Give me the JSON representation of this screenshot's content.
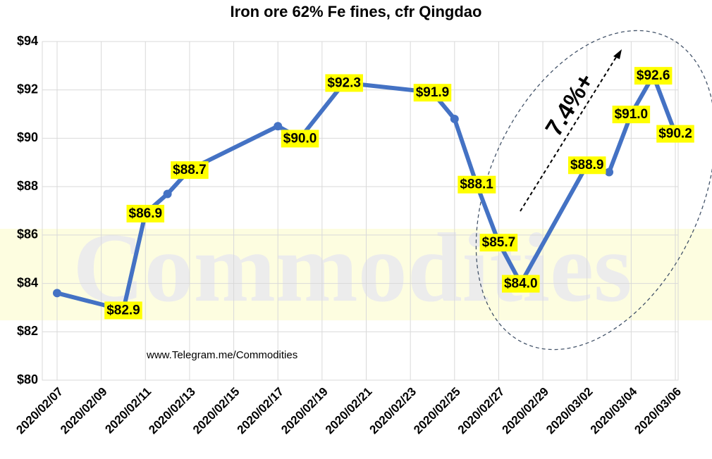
{
  "chart_data": {
    "type": "line",
    "title": "Iron ore 62% Fe fines, cfr Qingdao",
    "annotations": [
      "7.4%+",
      "www.Telegram.me/Commodities"
    ],
    "watermark": "Commodities",
    "x": [
      "2020/02/07",
      "2020/02/10",
      "2020/02/11",
      "2020/02/12",
      "2020/02/13",
      "2020/02/17",
      "2020/02/18",
      "2020/02/20",
      "2020/02/24",
      "2020/02/25",
      "2020/02/26",
      "2020/02/27",
      "2020/02/28",
      "2020/03/02",
      "2020/03/03",
      "2020/03/04",
      "2020/03/05",
      "2020/03/06"
    ],
    "series": [
      {
        "name": "Iron ore 62% Fe fines",
        "color": "#4472c4",
        "values": [
          83.6,
          82.9,
          86.9,
          87.7,
          88.7,
          90.5,
          90.0,
          92.3,
          91.9,
          90.8,
          88.1,
          85.7,
          84.0,
          88.9,
          88.6,
          91.0,
          92.6,
          90.2
        ],
        "value_labels": [
          null,
          "$82.9",
          "$86.9",
          null,
          "$88.7",
          null,
          "$90.0",
          "$92.3",
          "$91.9",
          null,
          "$88.1",
          "$85.7",
          "$84.0",
          "$88.9",
          null,
          "$91.0",
          "$92.6",
          "$90.2"
        ]
      }
    ],
    "xlim": [
      "2020/02/07",
      "2020/03/06"
    ],
    "xticks": [
      "2020/02/07",
      "2020/02/09",
      "2020/02/11",
      "2020/02/13",
      "2020/02/15",
      "2020/02/17",
      "2020/02/19",
      "2020/02/21",
      "2020/02/23",
      "2020/02/25",
      "2020/02/27",
      "2020/02/29",
      "2020/03/02",
      "2020/03/04",
      "2020/03/06"
    ],
    "ylim": [
      80,
      94
    ],
    "yticks": [
      {
        "value": 80,
        "label": "$80"
      },
      {
        "value": 82,
        "label": "$82"
      },
      {
        "value": 84,
        "label": "$84"
      },
      {
        "value": 86,
        "label": "$86"
      },
      {
        "value": 88,
        "label": "$88"
      },
      {
        "value": 90,
        "label": "$90"
      },
      {
        "value": 92,
        "label": "$92"
      },
      {
        "value": 94,
        "label": "$94"
      }
    ],
    "grid": true,
    "label_color": "#ffff00"
  }
}
